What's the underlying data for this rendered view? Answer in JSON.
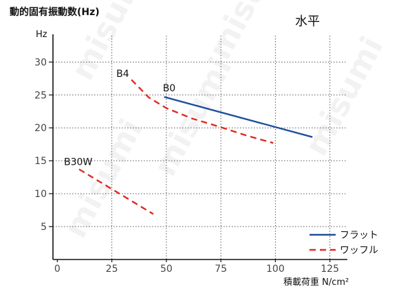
{
  "chart_data": {
    "type": "line",
    "title": "水平",
    "ylabel": "動的固有振動数(Hz)",
    "yunit": "Hz",
    "xlabel": "積載荷重 N/cm²",
    "xlim": [
      -2,
      133
    ],
    "ylim": [
      0,
      34
    ],
    "x_ticks": [
      0,
      25,
      50,
      75,
      100,
      125
    ],
    "y_ticks": [
      5,
      10,
      15,
      20,
      25,
      30
    ],
    "grid": true,
    "legend_position": "bottom-right",
    "watermark": "misumi",
    "legend": [
      {
        "label": "フラット",
        "color": "#1f4e9c",
        "dash": false
      },
      {
        "label": "ワッフル",
        "color": "#e02a22",
        "dash": true
      }
    ],
    "series": [
      {
        "name": "B0",
        "style": "フラット",
        "color": "#1f4e9c",
        "x": [
          49,
          117
        ],
        "y": [
          24.7,
          18.6
        ]
      },
      {
        "name": "B4",
        "style": "ワッフル",
        "color": "#e02a22",
        "x": [
          34,
          42,
          50,
          62,
          75,
          87,
          99
        ],
        "y": [
          27.3,
          24.6,
          23.0,
          21.4,
          20.1,
          18.8,
          17.7
        ]
      },
      {
        "name": "B30W",
        "style": "ワッフル",
        "color": "#e02a22",
        "x": [
          10,
          44
        ],
        "y": [
          13.7,
          6.9
        ]
      }
    ]
  }
}
